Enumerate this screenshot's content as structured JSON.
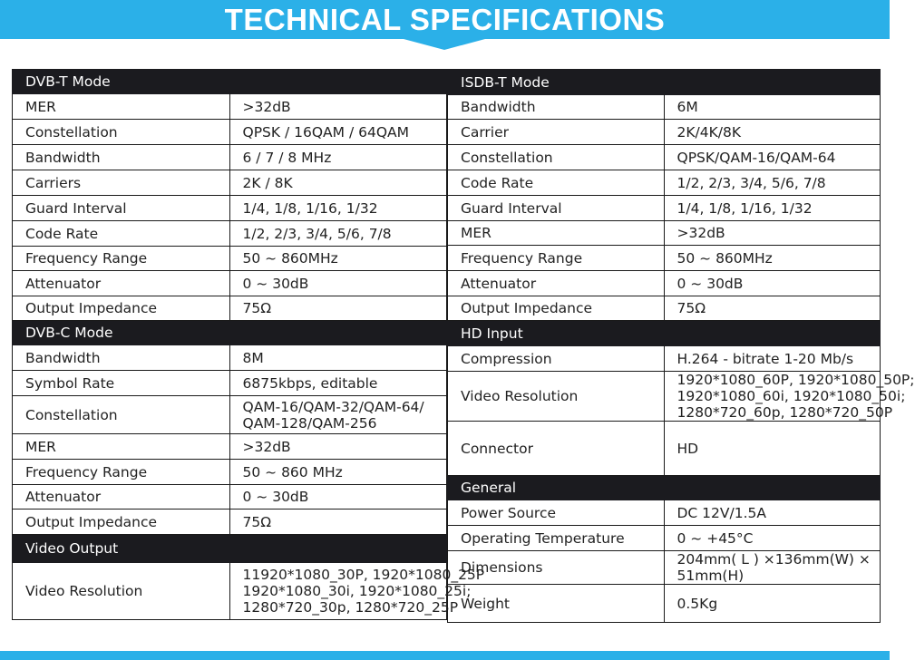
{
  "title": "TECHNICAL SPECIFICATIONS",
  "colors": {
    "accent": "#2bb0e8",
    "header_bg": "#1b1b1f"
  },
  "left_column": [
    {
      "type": "header",
      "label": "DVB-T Mode"
    },
    {
      "type": "row",
      "label": "MER",
      "value": ">32dB"
    },
    {
      "type": "row",
      "label": "Constellation",
      "value": "QPSK / 16QAM / 64QAM"
    },
    {
      "type": "row",
      "label": "Bandwidth",
      "value": "6 / 7 / 8 MHz"
    },
    {
      "type": "row",
      "label": "Carriers",
      "value": "2K / 8K"
    },
    {
      "type": "row",
      "label": "Guard Interval",
      "value": "1/4, 1/8, 1/16, 1/32"
    },
    {
      "type": "row",
      "label": "Code Rate",
      "value": "1/2, 2/3, 3/4, 5/6, 7/8"
    },
    {
      "type": "row",
      "label": "Frequency Range",
      "value": "50 ~ 860MHz"
    },
    {
      "type": "row",
      "label": "Attenuator",
      "value": "0 ~ 30dB"
    },
    {
      "type": "row",
      "label": "Output Impedance",
      "value": "75Ω"
    },
    {
      "type": "header",
      "label": "DVB-C Mode"
    },
    {
      "type": "row",
      "label": "Bandwidth",
      "value": "8M"
    },
    {
      "type": "row",
      "label": "Symbol Rate",
      "value": "6875kbps, editable"
    },
    {
      "type": "row",
      "label": "Constellation",
      "value": [
        "QAM-16/QAM-32/QAM-64/",
        "QAM-128/QAM-256"
      ]
    },
    {
      "type": "row",
      "label": "MER",
      "value": ">32dB"
    },
    {
      "type": "row",
      "label": "Frequency Range",
      "value": "50 ~ 860 MHz"
    },
    {
      "type": "row",
      "label": "Attenuator",
      "value": "0 ~ 30dB"
    },
    {
      "type": "row",
      "label": "Output Impedance",
      "value": "75Ω"
    },
    {
      "type": "header",
      "label": "Video Output"
    },
    {
      "type": "row",
      "label": "Video Resolution",
      "value": [
        "11920*1080_30P, 1920*1080_25P",
        "1920*1080_30i, 1920*1080_25i;",
        "1280*720_30p, 1280*720_25P"
      ]
    }
  ],
  "right_column": [
    {
      "type": "header",
      "label": "ISDB-T Mode"
    },
    {
      "type": "row",
      "label": "Bandwidth",
      "value": "6M"
    },
    {
      "type": "row",
      "label": "Carrier",
      "value": "2K/4K/8K"
    },
    {
      "type": "row",
      "label": "Constellation",
      "value": "QPSK/QAM-16/QAM-64"
    },
    {
      "type": "row",
      "label": "Code Rate",
      "value": "1/2, 2/3, 3/4, 5/6, 7/8"
    },
    {
      "type": "row",
      "label": "Guard Interval",
      "value": "1/4, 1/8, 1/16, 1/32"
    },
    {
      "type": "row",
      "label": "MER",
      "value": ">32dB"
    },
    {
      "type": "row",
      "label": "Frequency Range",
      "value": "50 ~ 860MHz"
    },
    {
      "type": "row",
      "label": "Attenuator",
      "value": "0 ~ 30dB"
    },
    {
      "type": "row",
      "label": "Output Impedance",
      "value": "75Ω"
    },
    {
      "type": "header",
      "label": "HD Input"
    },
    {
      "type": "row",
      "label": "Compression",
      "value": "H.264 - bitrate 1-20 Mb/s"
    },
    {
      "type": "row",
      "label": "Video Resolution",
      "value": [
        "1920*1080_60P, 1920*1080_50P;",
        "1920*1080_60i, 1920*1080_50i;",
        "1280*720_60p, 1280*720_50P"
      ]
    },
    {
      "type": "row",
      "label": "Connector",
      "value": "HD"
    },
    {
      "type": "header",
      "label": "General"
    },
    {
      "type": "row",
      "label": "Power Source",
      "value": "DC 12V/1.5A"
    },
    {
      "type": "row",
      "label": "Operating Temperature",
      "value": "0 ~ +45°C"
    },
    {
      "type": "row",
      "label": "Dimensions",
      "value": [
        "204mm( L ) ×136mm(W) ×",
        "51mm(H)"
      ]
    },
    {
      "type": "row",
      "label": "Weight",
      "value": "0.5Kg"
    }
  ]
}
